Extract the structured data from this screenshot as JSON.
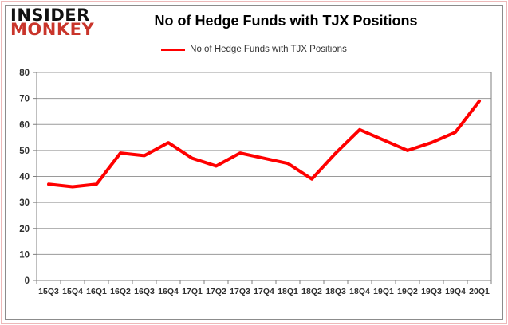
{
  "logo": {
    "line1": "INSIDER",
    "line2": "MONKEY"
  },
  "header": {
    "title": "No of Hedge Funds with TJX Positions"
  },
  "legend": {
    "label": "No of Hedge Funds with TJX Positions"
  },
  "chart_data": {
    "type": "line",
    "title": "No of Hedge Funds with TJX Positions",
    "categories": [
      "15Q3",
      "15Q4",
      "16Q1",
      "16Q2",
      "16Q3",
      "16Q4",
      "17Q1",
      "17Q2",
      "17Q3",
      "17Q4",
      "18Q1",
      "18Q2",
      "18Q3",
      "18Q4",
      "19Q1",
      "19Q2",
      "19Q3",
      "19Q4",
      "20Q1"
    ],
    "values": [
      37,
      36,
      37,
      49,
      48,
      53,
      47,
      44,
      49,
      47,
      45,
      39,
      49,
      58,
      54,
      50,
      53,
      57,
      69
    ],
    "xlabel": "",
    "ylabel": "",
    "ylim": [
      0,
      80
    ],
    "ytick_step": 10,
    "grid": true,
    "legend_position": "top-center"
  },
  "colors": {
    "series": "#ff0000",
    "grid": "#9a9a9a",
    "axis": "#7f7f7f",
    "tick_text": "#2e2e2e",
    "logo_red": "#c9352b",
    "frame_pink": "#edb9b9",
    "frame_gray": "#8c8c8c"
  }
}
